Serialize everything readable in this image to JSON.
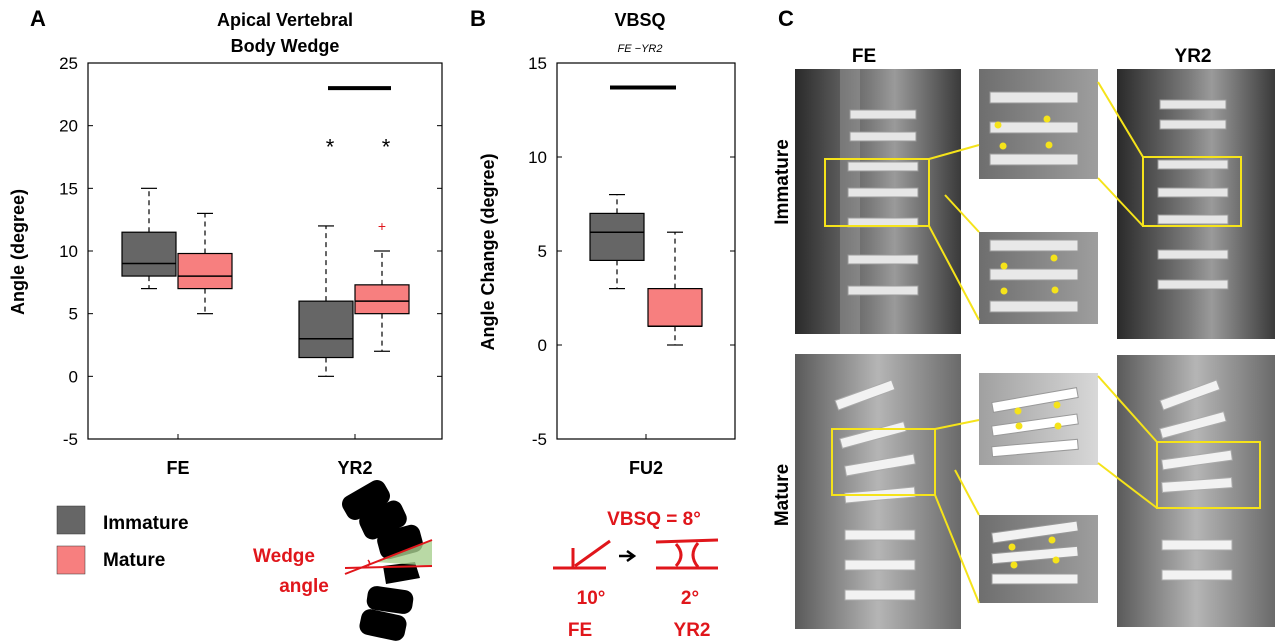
{
  "panel_letters": {
    "a": "A",
    "b": "B",
    "c": "C"
  },
  "chart_data": [
    {
      "panel": "A",
      "type": "box",
      "title": [
        "Apical Vertebral",
        "Body Wedge"
      ],
      "ylabel": "Angle (degree)",
      "ylim": [
        -5,
        25
      ],
      "yticks": [
        -5,
        0,
        5,
        10,
        15,
        20,
        25
      ],
      "categories": [
        "FE",
        "YR2"
      ],
      "significance": {
        "bar_label": "",
        "y": 23,
        "star": "*",
        "star_y": 18.8
      },
      "series": [
        {
          "name": "Immature",
          "color": "#666666",
          "boxes": [
            {
              "category": "FE",
              "whisker_low": 7,
              "q1": 8,
              "median": 9,
              "q3": 11.5,
              "whisker_high": 15,
              "outliers": []
            },
            {
              "category": "YR2",
              "whisker_low": 0,
              "q1": 1.5,
              "median": 3,
              "q3": 6,
              "whisker_high": 12,
              "outliers": []
            }
          ]
        },
        {
          "name": "Mature",
          "color": "#f77f7f",
          "boxes": [
            {
              "category": "FE",
              "whisker_low": 5,
              "q1": 7,
              "median": 8,
              "q3": 9.8,
              "whisker_high": 13,
              "outliers": []
            },
            {
              "category": "YR2",
              "whisker_low": 2,
              "q1": 5,
              "median": 6,
              "q3": 7.3,
              "whisker_high": 10,
              "outliers": [
                12
              ]
            }
          ]
        }
      ]
    },
    {
      "panel": "B",
      "type": "box",
      "title": "VBSQ",
      "subtitle": "FE −YR2",
      "ylabel": "Angle Change (degree)",
      "ylim": [
        -5,
        15
      ],
      "yticks": [
        -5,
        0,
        5,
        10,
        15
      ],
      "categories": [
        "FU2"
      ],
      "significance": {
        "y": 13.7
      },
      "series": [
        {
          "name": "Immature",
          "color": "#666666",
          "boxes": [
            {
              "category": "FU2",
              "whisker_low": 3,
              "q1": 4.5,
              "median": 6,
              "q3": 7,
              "whisker_high": 8,
              "outliers": []
            }
          ]
        },
        {
          "name": "Mature",
          "color": "#f77f7f",
          "boxes": [
            {
              "category": "FU2",
              "whisker_low": 0,
              "q1": 1,
              "median": 1,
              "q3": 3,
              "whisker_high": 6,
              "outliers": []
            }
          ]
        }
      ]
    }
  ],
  "legend": {
    "items": [
      {
        "label": "Immature",
        "color": "#666666"
      },
      {
        "label": "Mature",
        "color": "#f77f7f"
      }
    ]
  },
  "wedge_illustration": {
    "label_line1": "Wedge",
    "label_line2": "angle",
    "color": "#e0161b"
  },
  "vbsq_illustration": {
    "equation": "VBSQ = 8°",
    "left_angle": "10°",
    "right_angle": "2°",
    "left_label": "FE",
    "right_label": "YR2",
    "color": "#e0161b"
  },
  "panel_c": {
    "col_fe": "FE",
    "col_yr2": "YR2",
    "row_immature": "Immature",
    "row_mature": "Mature",
    "highlight_color": "#f5e31a"
  }
}
